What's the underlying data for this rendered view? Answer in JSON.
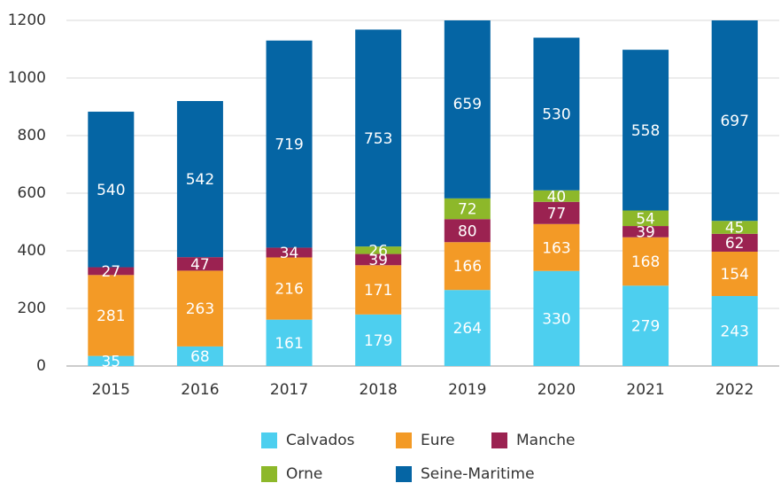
{
  "chart_data": {
    "type": "stacked_bar",
    "categories": [
      "2015",
      "2016",
      "2017",
      "2018",
      "2019",
      "2020",
      "2021",
      "2022"
    ],
    "series": [
      {
        "name": "Calvados",
        "color": "#4dcfef",
        "values": [
          35,
          68,
          161,
          179,
          264,
          330,
          279,
          243
        ]
      },
      {
        "name": "Eure",
        "color": "#f39a26",
        "values": [
          281,
          263,
          216,
          171,
          166,
          163,
          168,
          154
        ]
      },
      {
        "name": "Manche",
        "color": "#9b2251",
        "values": [
          27,
          47,
          34,
          39,
          80,
          77,
          39,
          62
        ]
      },
      {
        "name": "Orne",
        "color": "#8db82a",
        "values": [
          null,
          null,
          null,
          26,
          72,
          40,
          54,
          45
        ]
      },
      {
        "name": "Seine-Maritime",
        "color": "#0565a4",
        "values": [
          540,
          542,
          719,
          753,
          659,
          530,
          558,
          697
        ]
      }
    ],
    "ylim": [
      0,
      1200
    ],
    "yticks": [
      0,
      200,
      400,
      600,
      800,
      1000,
      1200
    ],
    "grid": true,
    "legend": "bottom"
  }
}
